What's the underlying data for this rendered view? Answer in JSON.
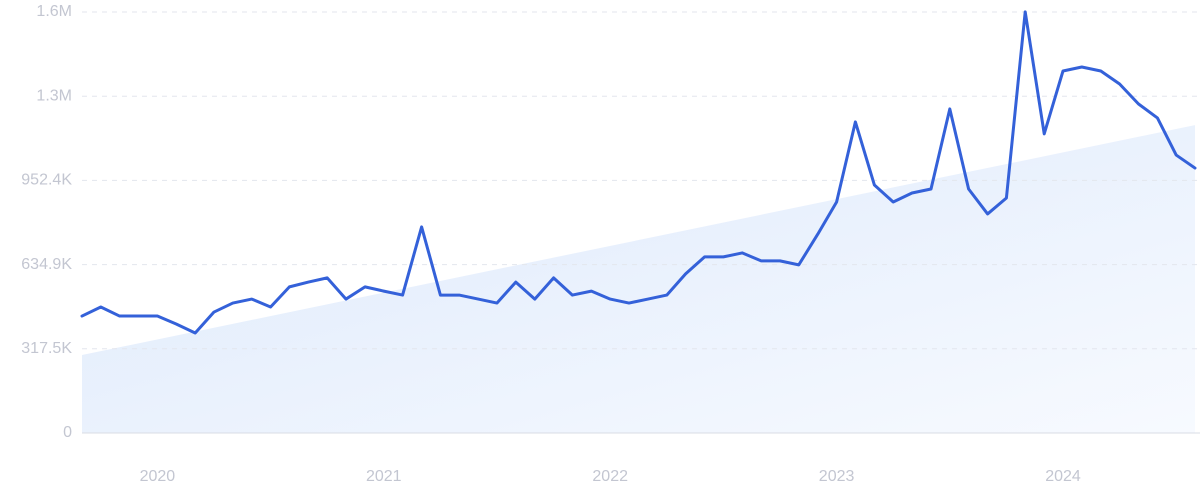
{
  "chart_data": {
    "type": "line",
    "x": [
      2019.667,
      2019.75,
      2019.833,
      2019.917,
      2020,
      2020.083,
      2020.167,
      2020.25,
      2020.333,
      2020.417,
      2020.5,
      2020.583,
      2020.667,
      2020.75,
      2020.833,
      2020.917,
      2021,
      2021.083,
      2021.167,
      2021.25,
      2021.333,
      2021.417,
      2021.5,
      2021.583,
      2021.667,
      2021.75,
      2021.833,
      2021.917,
      2022,
      2022.083,
      2022.167,
      2022.25,
      2022.333,
      2022.417,
      2022.5,
      2022.583,
      2022.667,
      2022.75,
      2022.833,
      2022.917,
      2023,
      2023.083,
      2023.167,
      2023.25,
      2023.333,
      2023.417,
      2023.5,
      2023.583,
      2023.667,
      2023.75,
      2023.833,
      2023.917,
      2024,
      2024.083,
      2024.167,
      2024.25,
      2024.333,
      2024.417,
      2024.5,
      2024.583
    ],
    "values": [
      441000,
      475000,
      441000,
      441000,
      441000,
      411000,
      377000,
      456000,
      490000,
      505000,
      475000,
      551000,
      569000,
      585000,
      505000,
      551000,
      535000,
      520000,
      777000,
      520000,
      520000,
      505000,
      490000,
      569000,
      505000,
      585000,
      520000,
      535000,
      505000,
      490000,
      505000,
      520000,
      600000,
      664000,
      664000,
      679000,
      649000,
      649000,
      634000,
      750000,
      871000,
      1173000,
      935000,
      871000,
      905000,
      920000,
      1222000,
      920000,
      826000,
      886000,
      1588000,
      1128000,
      1365000,
      1380000,
      1365000,
      1316000,
      1241000,
      1188000,
      1048000,
      999000
    ],
    "color": "#3461d9",
    "trend_values": [
      294000,
      1161000
    ],
    "xlim": [
      2019.667,
      2024.583
    ],
    "xticks": [
      2020,
      2021,
      2022,
      2023,
      2024
    ],
    "ylim": [
      0,
      1587400
    ],
    "yticks": [
      0,
      {
        "value": 317500,
        "label": "317.5K"
      },
      {
        "value": 634900,
        "label": "634.9K"
      },
      {
        "value": 952400,
        "label": "952.4K"
      },
      {
        "value": 1269900,
        "label": "1.3M"
      },
      {
        "value": 1587400,
        "label": "1.6M"
      }
    ],
    "grid": true
  }
}
